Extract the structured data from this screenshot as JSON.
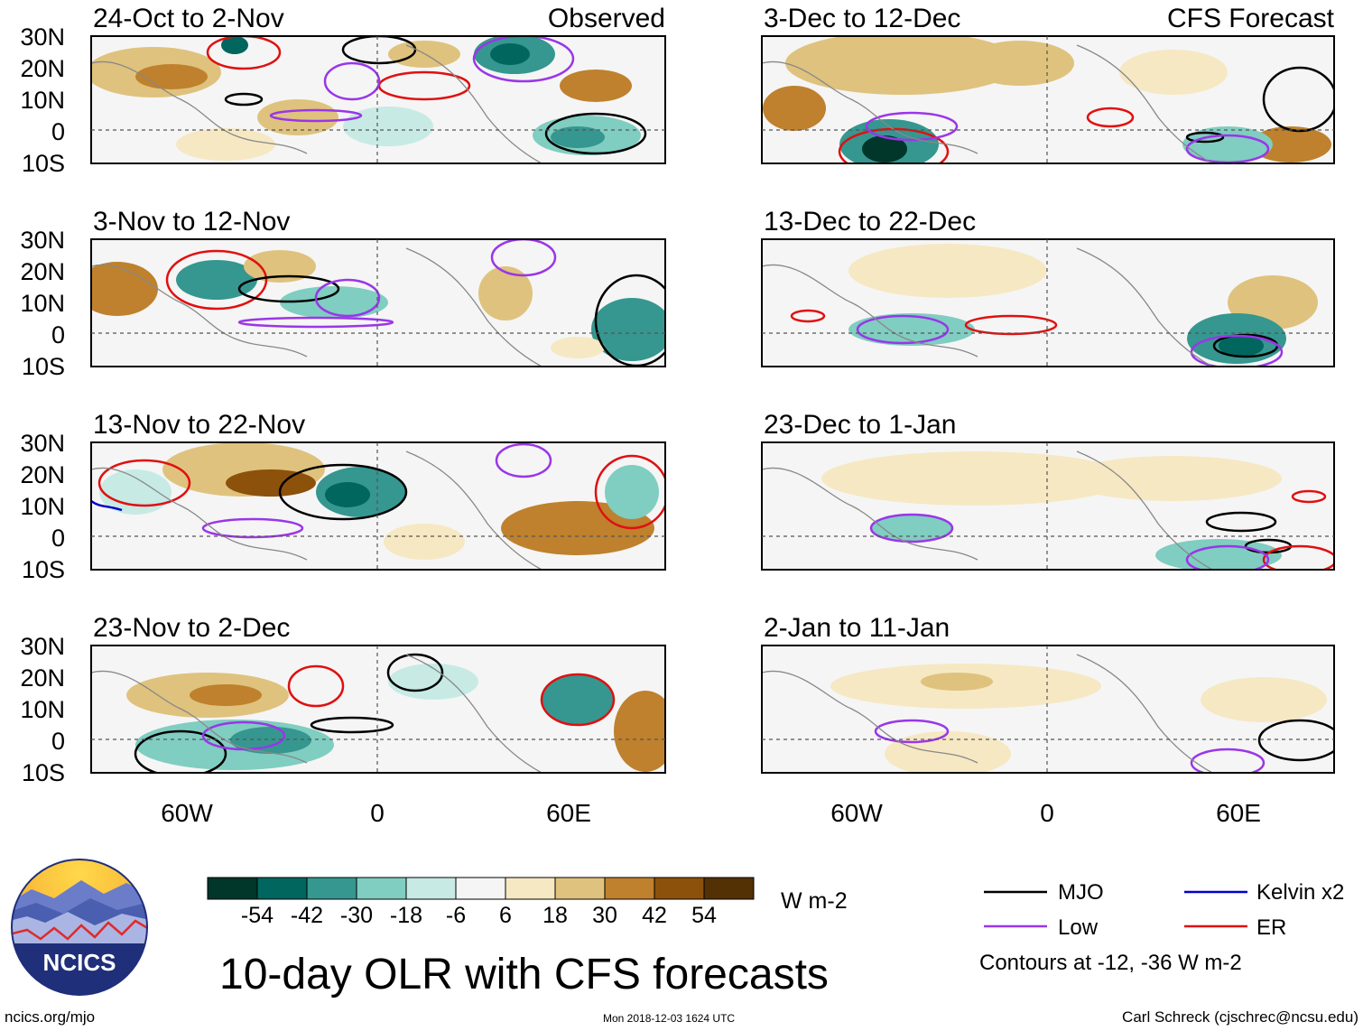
{
  "observed_label": "Observed",
  "forecast_label": "CFS Forecast",
  "panels": {
    "obs": [
      {
        "period": "24-Oct to 2-Nov"
      },
      {
        "period": "3-Nov to 12-Nov"
      },
      {
        "period": "13-Nov to 22-Nov"
      },
      {
        "period": "23-Nov to 2-Dec"
      }
    ],
    "fcst": [
      {
        "period": "3-Dec to 12-Dec"
      },
      {
        "period": "13-Dec to 22-Dec"
      },
      {
        "period": "23-Dec to 1-Jan"
      },
      {
        "period": "2-Jan to 11-Jan"
      }
    ]
  },
  "lat_labels": [
    "30N",
    "20N",
    "10N",
    "0",
    "10S"
  ],
  "lon_labels": [
    "60W",
    "0",
    "60E"
  ],
  "colorbar": {
    "ticks": [
      "-54",
      "-42",
      "-30",
      "-18",
      "-6",
      "6",
      "18",
      "30",
      "42",
      "54"
    ],
    "units": "W m-2",
    "colors": [
      "#01362b",
      "#01665e",
      "#35978f",
      "#80cdc1",
      "#c7eae5",
      "#f5f5f5",
      "#f6e8c3",
      "#dfc27d",
      "#bf812d",
      "#8c510a",
      "#543005"
    ]
  },
  "legend": {
    "mjo": "MJO",
    "kelvin": "Kelvin x2",
    "low": "Low",
    "er": "ER",
    "contours_note": "Contours at -12, -36 W m-2",
    "mjo_color": "#000000",
    "kelvin_color": "#0000cc",
    "low_color": "#9a36e8",
    "er_color": "#e01010"
  },
  "main_title": "10-day OLR with CFS forecasts",
  "logo_text": "NCICS",
  "footer": {
    "url": "ncics.org/mjo",
    "timestamp": "Mon 2018-12-03 1624 UTC",
    "author": "Carl Schreck (cjschrec@ncsu.edu)"
  }
}
